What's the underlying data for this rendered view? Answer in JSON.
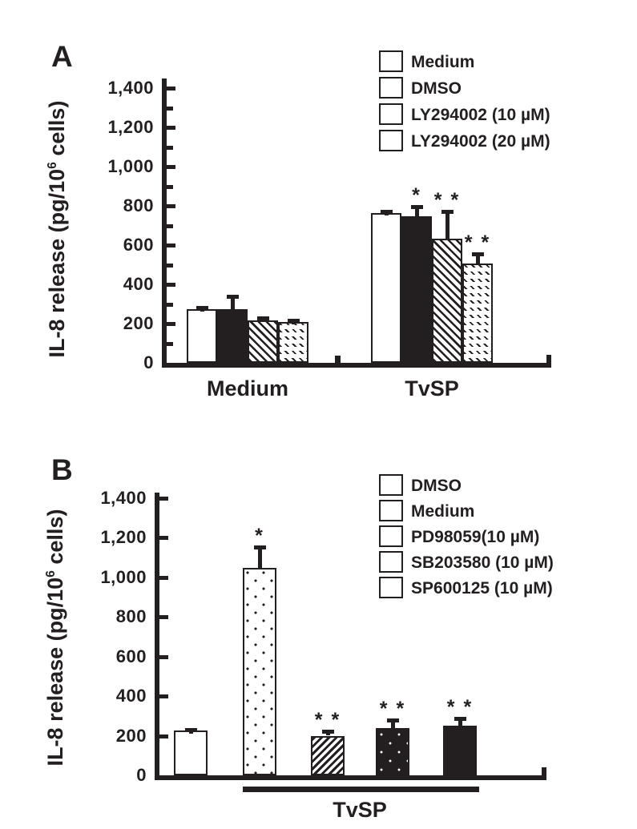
{
  "figure_bg": "#ffffff",
  "ink_color": "#231f20",
  "panels": [
    {
      "label": "A",
      "ylabel_prefix": "IL-8 release (pg/10",
      "ylabel_sup": "6",
      "ylabel_suffix": " cells)",
      "legend": [
        {
          "label": "Medium",
          "pattern": "white"
        },
        {
          "label": "DMSO",
          "pattern": "black"
        },
        {
          "label": "LY294002 (10 µM)",
          "pattern": "hatch-back"
        },
        {
          "label": "LY294002 (20 µM)",
          "pattern": "hatch-back-sparse"
        }
      ],
      "x_group_labels": [
        "Medium",
        "TvSP"
      ]
    },
    {
      "label": "B",
      "ylabel_prefix": "IL-8 release (pg/10",
      "ylabel_sup": "6",
      "ylabel_suffix": " cells)",
      "legend": [
        {
          "label": "DMSO",
          "pattern": "white"
        },
        {
          "label": "Medium",
          "pattern": "dots-white"
        },
        {
          "label": "PD98059(10 µM)",
          "pattern": "hatch-fwd"
        },
        {
          "label": "SB203580 (10 µM)",
          "pattern": "dots-black"
        },
        {
          "label": "SP600125 (10 µM)",
          "pattern": "black"
        }
      ],
      "x_group_labels": [
        "TvSP"
      ]
    }
  ],
  "chart_data": [
    {
      "type": "bar",
      "panel": "A",
      "title": "",
      "ylabel": "IL-8 release (pg/10^6 cells)",
      "ylim": [
        0,
        1400
      ],
      "ytick_step": 200,
      "yminor_step": 100,
      "ytick_labels": [
        "0",
        "200",
        "400",
        "600",
        "800",
        "1,000",
        "1,200",
        "1,400"
      ],
      "grid": false,
      "legend_position": "upper right",
      "categories": [
        "Medium",
        "TvSP"
      ],
      "series": [
        {
          "name": "Medium",
          "pattern": "white",
          "values": [
            275,
            762
          ],
          "errors": [
            15,
            18
          ],
          "sig": [
            "",
            ""
          ]
        },
        {
          "name": "DMSO",
          "pattern": "black",
          "values": [
            275,
            748
          ],
          "errors": [
            72,
            55
          ],
          "sig": [
            "",
            "*"
          ]
        },
        {
          "name": "LY294002 (10 µM)",
          "pattern": "hatch-back",
          "values": [
            218,
            632
          ],
          "errors": [
            18,
            148
          ],
          "sig": [
            "",
            "* *"
          ]
        },
        {
          "name": "LY294002 (20 µM)",
          "pattern": "hatch-back-sparse",
          "values": [
            210,
            505
          ],
          "errors": [
            15,
            58
          ],
          "sig": [
            "",
            "* *"
          ]
        }
      ]
    },
    {
      "type": "bar",
      "panel": "B",
      "title": "",
      "ylabel": "IL-8 release (pg/10^6 cells)",
      "ylim": [
        0,
        1400
      ],
      "ytick_step": 200,
      "ytick_labels": [
        "0",
        "200",
        "400",
        "600",
        "800",
        "1,000",
        "1,200",
        "1,400"
      ],
      "grid": false,
      "legend_position": "upper right",
      "categories": [
        "DMSO",
        "Medium",
        "PD98059(10 µM)",
        "SB203580 (10 µM)",
        "SP600125 (10 µM)"
      ],
      "values": [
        225,
        1045,
        200,
        237,
        250
      ],
      "errors": [
        15,
        115,
        32,
        48,
        45
      ],
      "sig": [
        "",
        "*",
        "* *",
        "* *",
        "* *"
      ],
      "patterns": [
        "white",
        "dots-white",
        "hatch-fwd",
        "dots-black",
        "black"
      ],
      "group_underline": {
        "label": "TvSP",
        "from_bar": 1,
        "to_bar": 4
      }
    }
  ]
}
